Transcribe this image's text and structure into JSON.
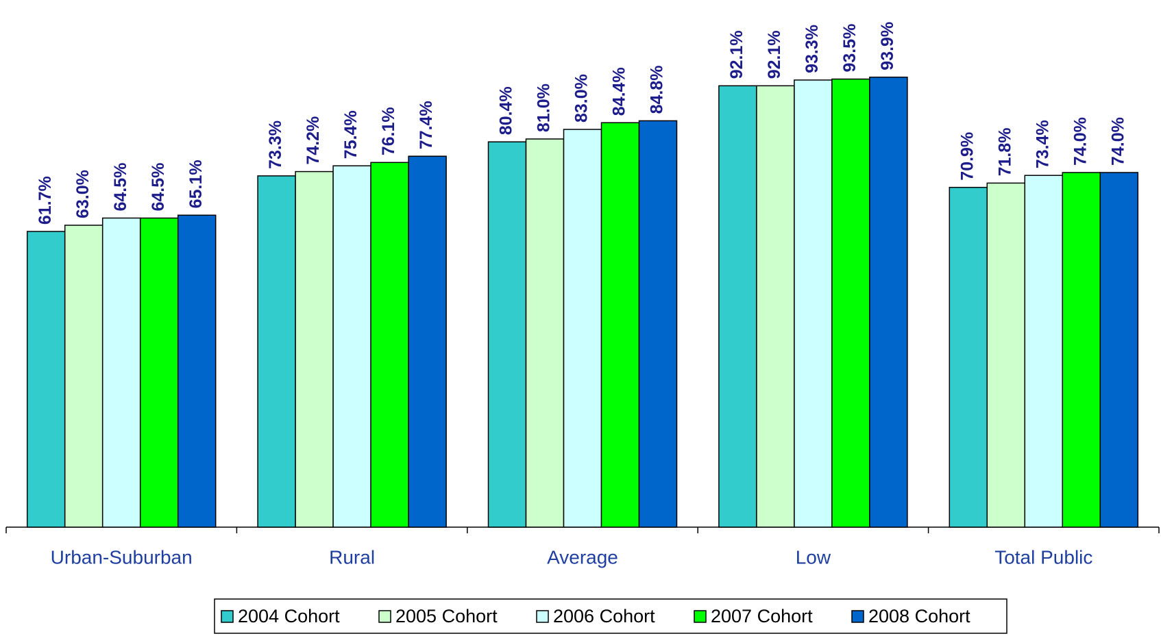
{
  "chart_data": {
    "type": "bar",
    "categories": [
      "Urban-Suburban",
      "Rural",
      "Average",
      "Low",
      "Total Public"
    ],
    "series": [
      {
        "name": "2004 Cohort",
        "color": "#33cccc",
        "values": [
          61.7,
          73.3,
          80.4,
          92.1,
          70.9
        ],
        "value_labels": [
          "61.7%",
          "73.3%",
          "80.4%",
          "92.1%",
          "70.9%"
        ]
      },
      {
        "name": "2005 Cohort",
        "color": "#ccffcc",
        "values": [
          63.0,
          74.2,
          81.0,
          92.1,
          71.8
        ],
        "value_labels": [
          "63.0%",
          "74.2%",
          "81.0%",
          "92.1%",
          "71.8%"
        ]
      },
      {
        "name": "2006 Cohort",
        "color": "#ccffff",
        "values": [
          64.5,
          75.4,
          83.0,
          93.3,
          73.4
        ],
        "value_labels": [
          "64.5%",
          "75.4%",
          "83.0%",
          "93.3%",
          "73.4%"
        ]
      },
      {
        "name": "2007 Cohort",
        "color": "#00ff00",
        "values": [
          64.5,
          76.1,
          84.4,
          93.5,
          74.0
        ],
        "value_labels": [
          "64.5%",
          "76.1%",
          "84.4%",
          "93.5%",
          "74.0%"
        ]
      },
      {
        "name": "2008 Cohort",
        "color": "#0066cc",
        "values": [
          65.1,
          77.4,
          84.8,
          93.9,
          74.0
        ],
        "value_labels": [
          "65.1%",
          "77.4%",
          "84.8%",
          "93.9%",
          "74.0%"
        ]
      }
    ],
    "ylim": [
      0,
      100
    ],
    "legend": "bottom"
  }
}
